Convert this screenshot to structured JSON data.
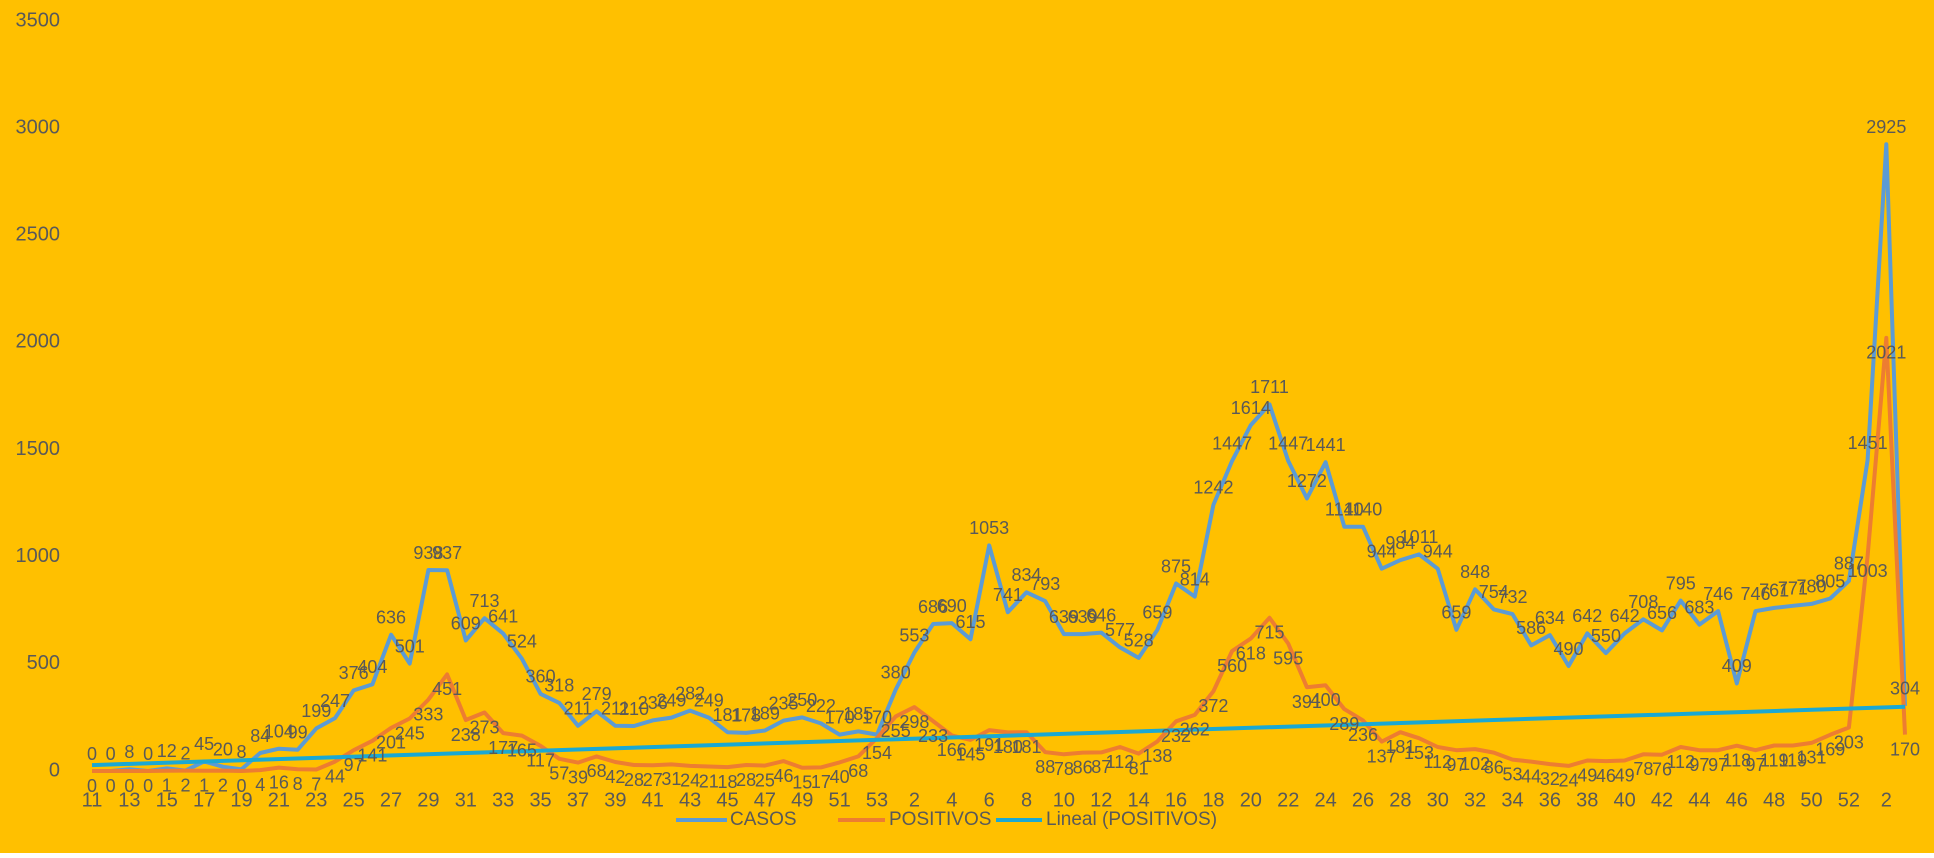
{
  "chart_data": {
    "type": "line",
    "background": "#ffc000",
    "ylim": [
      0,
      3500
    ],
    "yticks": [
      0,
      500,
      1000,
      1500,
      2000,
      2500,
      3000,
      3500
    ],
    "categories": [
      "11",
      null,
      "13",
      null,
      "15",
      null,
      "17",
      null,
      "19",
      null,
      "21",
      null,
      "23",
      null,
      "25",
      null,
      "27",
      null,
      "29",
      null,
      "31",
      null,
      "33",
      null,
      "35",
      null,
      "37",
      null,
      "39",
      null,
      "41",
      null,
      "43",
      null,
      "45",
      null,
      "47",
      null,
      "49",
      null,
      "51",
      null,
      "53",
      null,
      "2",
      null,
      "4",
      null,
      "6",
      null,
      "8",
      null,
      "10",
      null,
      "12",
      null,
      "14",
      null,
      "16",
      null,
      "18",
      null,
      "20",
      null,
      "22",
      null,
      "24",
      null,
      "26",
      null,
      "28",
      null,
      "30",
      null,
      "32",
      null,
      "34",
      null,
      "36",
      null,
      "38",
      null,
      "40",
      null,
      "42",
      null,
      "44",
      null,
      "46",
      null,
      "48",
      null,
      "50",
      null,
      "52",
      null,
      "2",
      null
    ],
    "series": [
      {
        "name": "CASOS",
        "color": "#5b9bd5",
        "values": [
          0,
          0,
          8,
          0,
          12,
          2,
          45,
          20,
          8,
          84,
          104,
          99,
          199,
          247,
          376,
          404,
          636,
          501,
          938,
          937,
          609,
          713,
          641,
          524,
          360,
          318,
          211,
          279,
          211,
          210,
          236,
          249,
          282,
          249,
          181,
          178,
          189,
          235,
          250,
          222,
          170,
          185,
          170,
          380,
          553,
          686,
          690,
          615,
          1053,
          741,
          834,
          793,
          639,
          639,
          646,
          577,
          528,
          659,
          875,
          814,
          1242,
          1447,
          1614,
          1711,
          1447,
          1272,
          1441,
          1140,
          1140,
          944,
          984,
          1011,
          944,
          659,
          848,
          754,
          732,
          586,
          634,
          490,
          642,
          550,
          642,
          708,
          656,
          795,
          683,
          746,
          409,
          746,
          761,
          771,
          780,
          805,
          887,
          1451,
          2925,
          304
        ]
      },
      {
        "name": "POSITIVOS",
        "color": "#ed7d31",
        "values": [
          0,
          0,
          0,
          0,
          1,
          2,
          1,
          2,
          0,
          4,
          16,
          8,
          7,
          44,
          97,
          141,
          201,
          245,
          333,
          451,
          238,
          273,
          177,
          165,
          117,
          57,
          39,
          68,
          42,
          28,
          27,
          31,
          24,
          21,
          18,
          28,
          25,
          46,
          15,
          17,
          40,
          68,
          154,
          255,
          298,
          233,
          166,
          145,
          191,
          180,
          181,
          88,
          78,
          86,
          87,
          112,
          81,
          138,
          232,
          262,
          372,
          560,
          618,
          715,
          595,
          391,
          400,
          289,
          236,
          137,
          181,
          153,
          112,
          97,
          102,
          86,
          53,
          44,
          32,
          24,
          49,
          46,
          49,
          78,
          76,
          112,
          97,
          97,
          118,
          97,
          119,
          119,
          131,
          169,
          203,
          1003,
          2021,
          170
        ]
      }
    ],
    "trendline": {
      "name": "Lineal (POSITIVOS)",
      "color": "#1ba8d3"
    }
  }
}
